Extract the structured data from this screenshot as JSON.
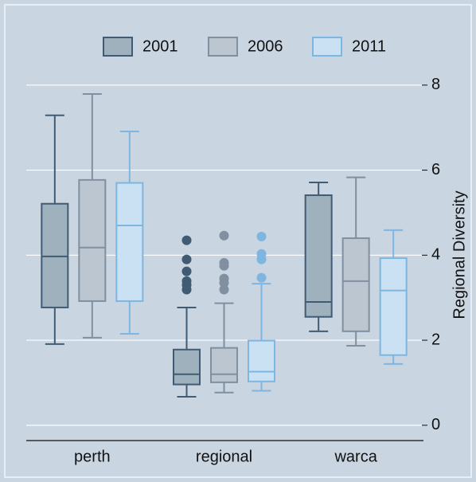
{
  "chart_data": {
    "type": "box",
    "y_label": "Regional Diversity",
    "categories": [
      "perth",
      "regional",
      "warca"
    ],
    "ylim": [
      -0.36,
      8.6
    ],
    "yticks": [
      0,
      2,
      4,
      6,
      8
    ],
    "grid": true,
    "legend": "top",
    "series": [
      {
        "name": "2001",
        "color": "#a0b1be",
        "edge_color": "#3f5c74",
        "boxes": [
          {
            "whislo": 1.91,
            "q1": 2.77,
            "med": 3.97,
            "q3": 5.21,
            "whishi": 7.29,
            "fliers": []
          },
          {
            "whislo": 0.67,
            "q1": 0.96,
            "med": 1.2,
            "q3": 1.78,
            "whishi": 2.77,
            "fliers": [
              4.35,
              3.9,
              3.62,
              3.39,
              3.3,
              3.19
            ]
          },
          {
            "whislo": 2.21,
            "q1": 2.55,
            "med": 2.9,
            "q3": 5.41,
            "whishi": 5.71,
            "fliers": []
          }
        ]
      },
      {
        "name": "2006",
        "color": "#bcc6d0",
        "edge_color": "#8090a1",
        "boxes": [
          {
            "whislo": 2.06,
            "q1": 2.92,
            "med": 4.18,
            "q3": 5.77,
            "whishi": 7.79,
            "fliers": []
          },
          {
            "whislo": 0.77,
            "q1": 1.01,
            "med": 1.2,
            "q3": 1.82,
            "whishi": 2.87,
            "fliers": [
              4.46,
              3.82,
              3.75,
              3.45,
              3.35,
              3.19
            ]
          },
          {
            "whislo": 1.87,
            "q1": 2.21,
            "med": 3.39,
            "q3": 4.4,
            "whishi": 5.83,
            "fliers": []
          }
        ]
      },
      {
        "name": "2011",
        "color": "#c9e1f3",
        "edge_color": "#7db6e1",
        "boxes": [
          {
            "whislo": 2.15,
            "q1": 2.92,
            "med": 4.7,
            "q3": 5.7,
            "whishi": 6.91,
            "fliers": []
          },
          {
            "whislo": 0.81,
            "q1": 1.03,
            "med": 1.26,
            "q3": 1.99,
            "whishi": 3.33,
            "fliers": [
              4.44,
              4.03,
              3.9,
              3.47
            ]
          },
          {
            "whislo": 1.44,
            "q1": 1.65,
            "med": 3.17,
            "q3": 3.93,
            "whishi": 4.59,
            "fliers": []
          }
        ]
      }
    ]
  }
}
